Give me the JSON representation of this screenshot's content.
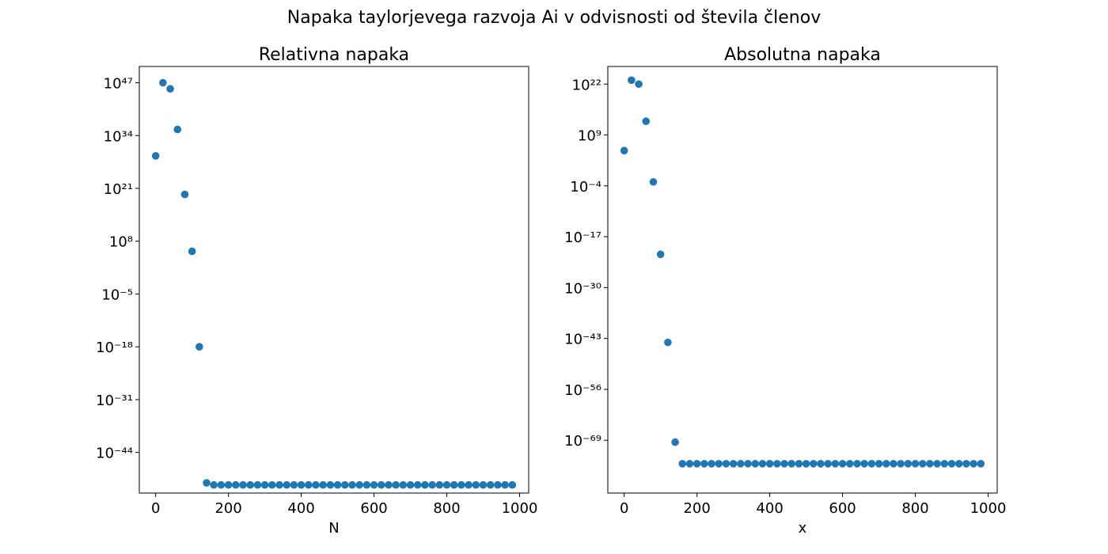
{
  "suptitle": "Napaka taylorjevega razvoja Ai v odvisnosti od števila členov",
  "colors": {
    "marker": "#1f77b4"
  },
  "chart_data": [
    {
      "type": "scatter",
      "title": "Relativna napaka",
      "xlabel": "N",
      "ylabel": "",
      "yscale": "log",
      "xlim": [
        -45,
        1025
      ],
      "ylim_exp": [
        -54,
        51
      ],
      "xticks": [
        0,
        200,
        400,
        600,
        800,
        1000
      ],
      "yticks_exp": [
        47,
        34,
        21,
        8,
        -5,
        -18,
        -31,
        -44
      ],
      "grid": false,
      "x": [
        0,
        20,
        40,
        60,
        80,
        100,
        120,
        140,
        160,
        180,
        200,
        220,
        240,
        260,
        280,
        300,
        320,
        340,
        360,
        380,
        400,
        420,
        440,
        460,
        480,
        500,
        520,
        540,
        560,
        580,
        600,
        620,
        640,
        660,
        680,
        700,
        720,
        740,
        760,
        780,
        800,
        820,
        840,
        860,
        880,
        900,
        920,
        940,
        960,
        980
      ],
      "y_exp": [
        29,
        47,
        45.5,
        35.5,
        19.5,
        5.5,
        -18,
        -51.5,
        -52,
        -52,
        -52,
        -52,
        -52,
        -52,
        -52,
        -52,
        -52,
        -52,
        -52,
        -52,
        -52,
        -52,
        -52,
        -52,
        -52,
        -52,
        -52,
        -52,
        -52,
        -52,
        -52,
        -52,
        -52,
        -52,
        -52,
        -52,
        -52,
        -52,
        -52,
        -52,
        -52,
        -52,
        -52,
        -52,
        -52,
        -52,
        -52,
        -52,
        -52,
        -52
      ]
    },
    {
      "type": "scatter",
      "title": "Absolutna napaka",
      "xlabel": "x",
      "ylabel": "",
      "yscale": "log",
      "xlim": [
        -45,
        1025
      ],
      "ylim_exp": [
        -82.5,
        26.5
      ],
      "xticks": [
        0,
        200,
        400,
        600,
        800,
        1000
      ],
      "yticks_exp": [
        22,
        9,
        -4,
        -17,
        -30,
        -43,
        -56,
        -69
      ],
      "grid": false,
      "x": [
        0,
        20,
        40,
        60,
        80,
        100,
        120,
        140,
        160,
        180,
        200,
        220,
        240,
        260,
        280,
        300,
        320,
        340,
        360,
        380,
        400,
        420,
        440,
        460,
        480,
        500,
        520,
        540,
        560,
        580,
        600,
        620,
        640,
        660,
        680,
        700,
        720,
        740,
        760,
        780,
        800,
        820,
        840,
        860,
        880,
        900,
        920,
        940,
        960,
        980
      ],
      "y_exp": [
        5,
        23,
        22,
        12.5,
        -3,
        -21.5,
        -44,
        -69.5,
        -75,
        -75,
        -75,
        -75,
        -75,
        -75,
        -75,
        -75,
        -75,
        -75,
        -75,
        -75,
        -75,
        -75,
        -75,
        -75,
        -75,
        -75,
        -75,
        -75,
        -75,
        -75,
        -75,
        -75,
        -75,
        -75,
        -75,
        -75,
        -75,
        -75,
        -75,
        -75,
        -75,
        -75,
        -75,
        -75,
        -75,
        -75,
        -75,
        -75,
        -75,
        -75
      ]
    }
  ]
}
